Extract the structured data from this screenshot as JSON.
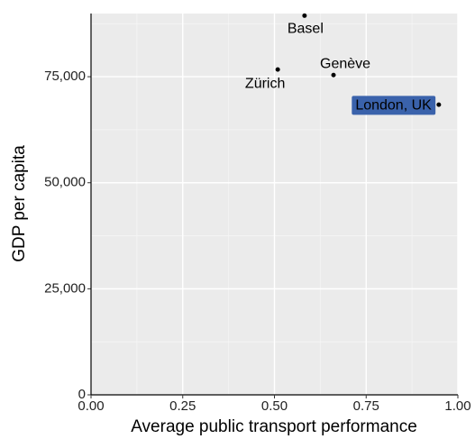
{
  "chart_data": {
    "type": "scatter",
    "x_label": "Average public transport performance",
    "y_label": "GDP per capita",
    "labels": [
      "Basel",
      "Zürich",
      "Genève",
      "London, UK"
    ],
    "x": [
      0.582,
      0.509,
      0.661,
      0.948
    ],
    "values": [
      89400,
      76700,
      75400,
      68400
    ],
    "color": "#000000",
    "label_fill": [
      null,
      null,
      null,
      "#3a62ab"
    ],
    "xlim": [
      0,
      1
    ],
    "ylim": [
      0,
      89900
    ],
    "xticks": [
      {
        "value": 0,
        "label": "0.00"
      },
      {
        "value": 0.25,
        "label": "0.25"
      },
      {
        "value": 0.5,
        "label": "0.50"
      },
      {
        "value": 0.75,
        "label": "0.75"
      },
      {
        "value": 1,
        "label": "1.00"
      }
    ],
    "yticks": [
      0,
      {
        "value": 25000,
        "label": "25,000"
      },
      {
        "value": 50000,
        "label": "50,000"
      },
      {
        "value": 75000,
        "label": "75,000"
      }
    ],
    "grid": true
  }
}
